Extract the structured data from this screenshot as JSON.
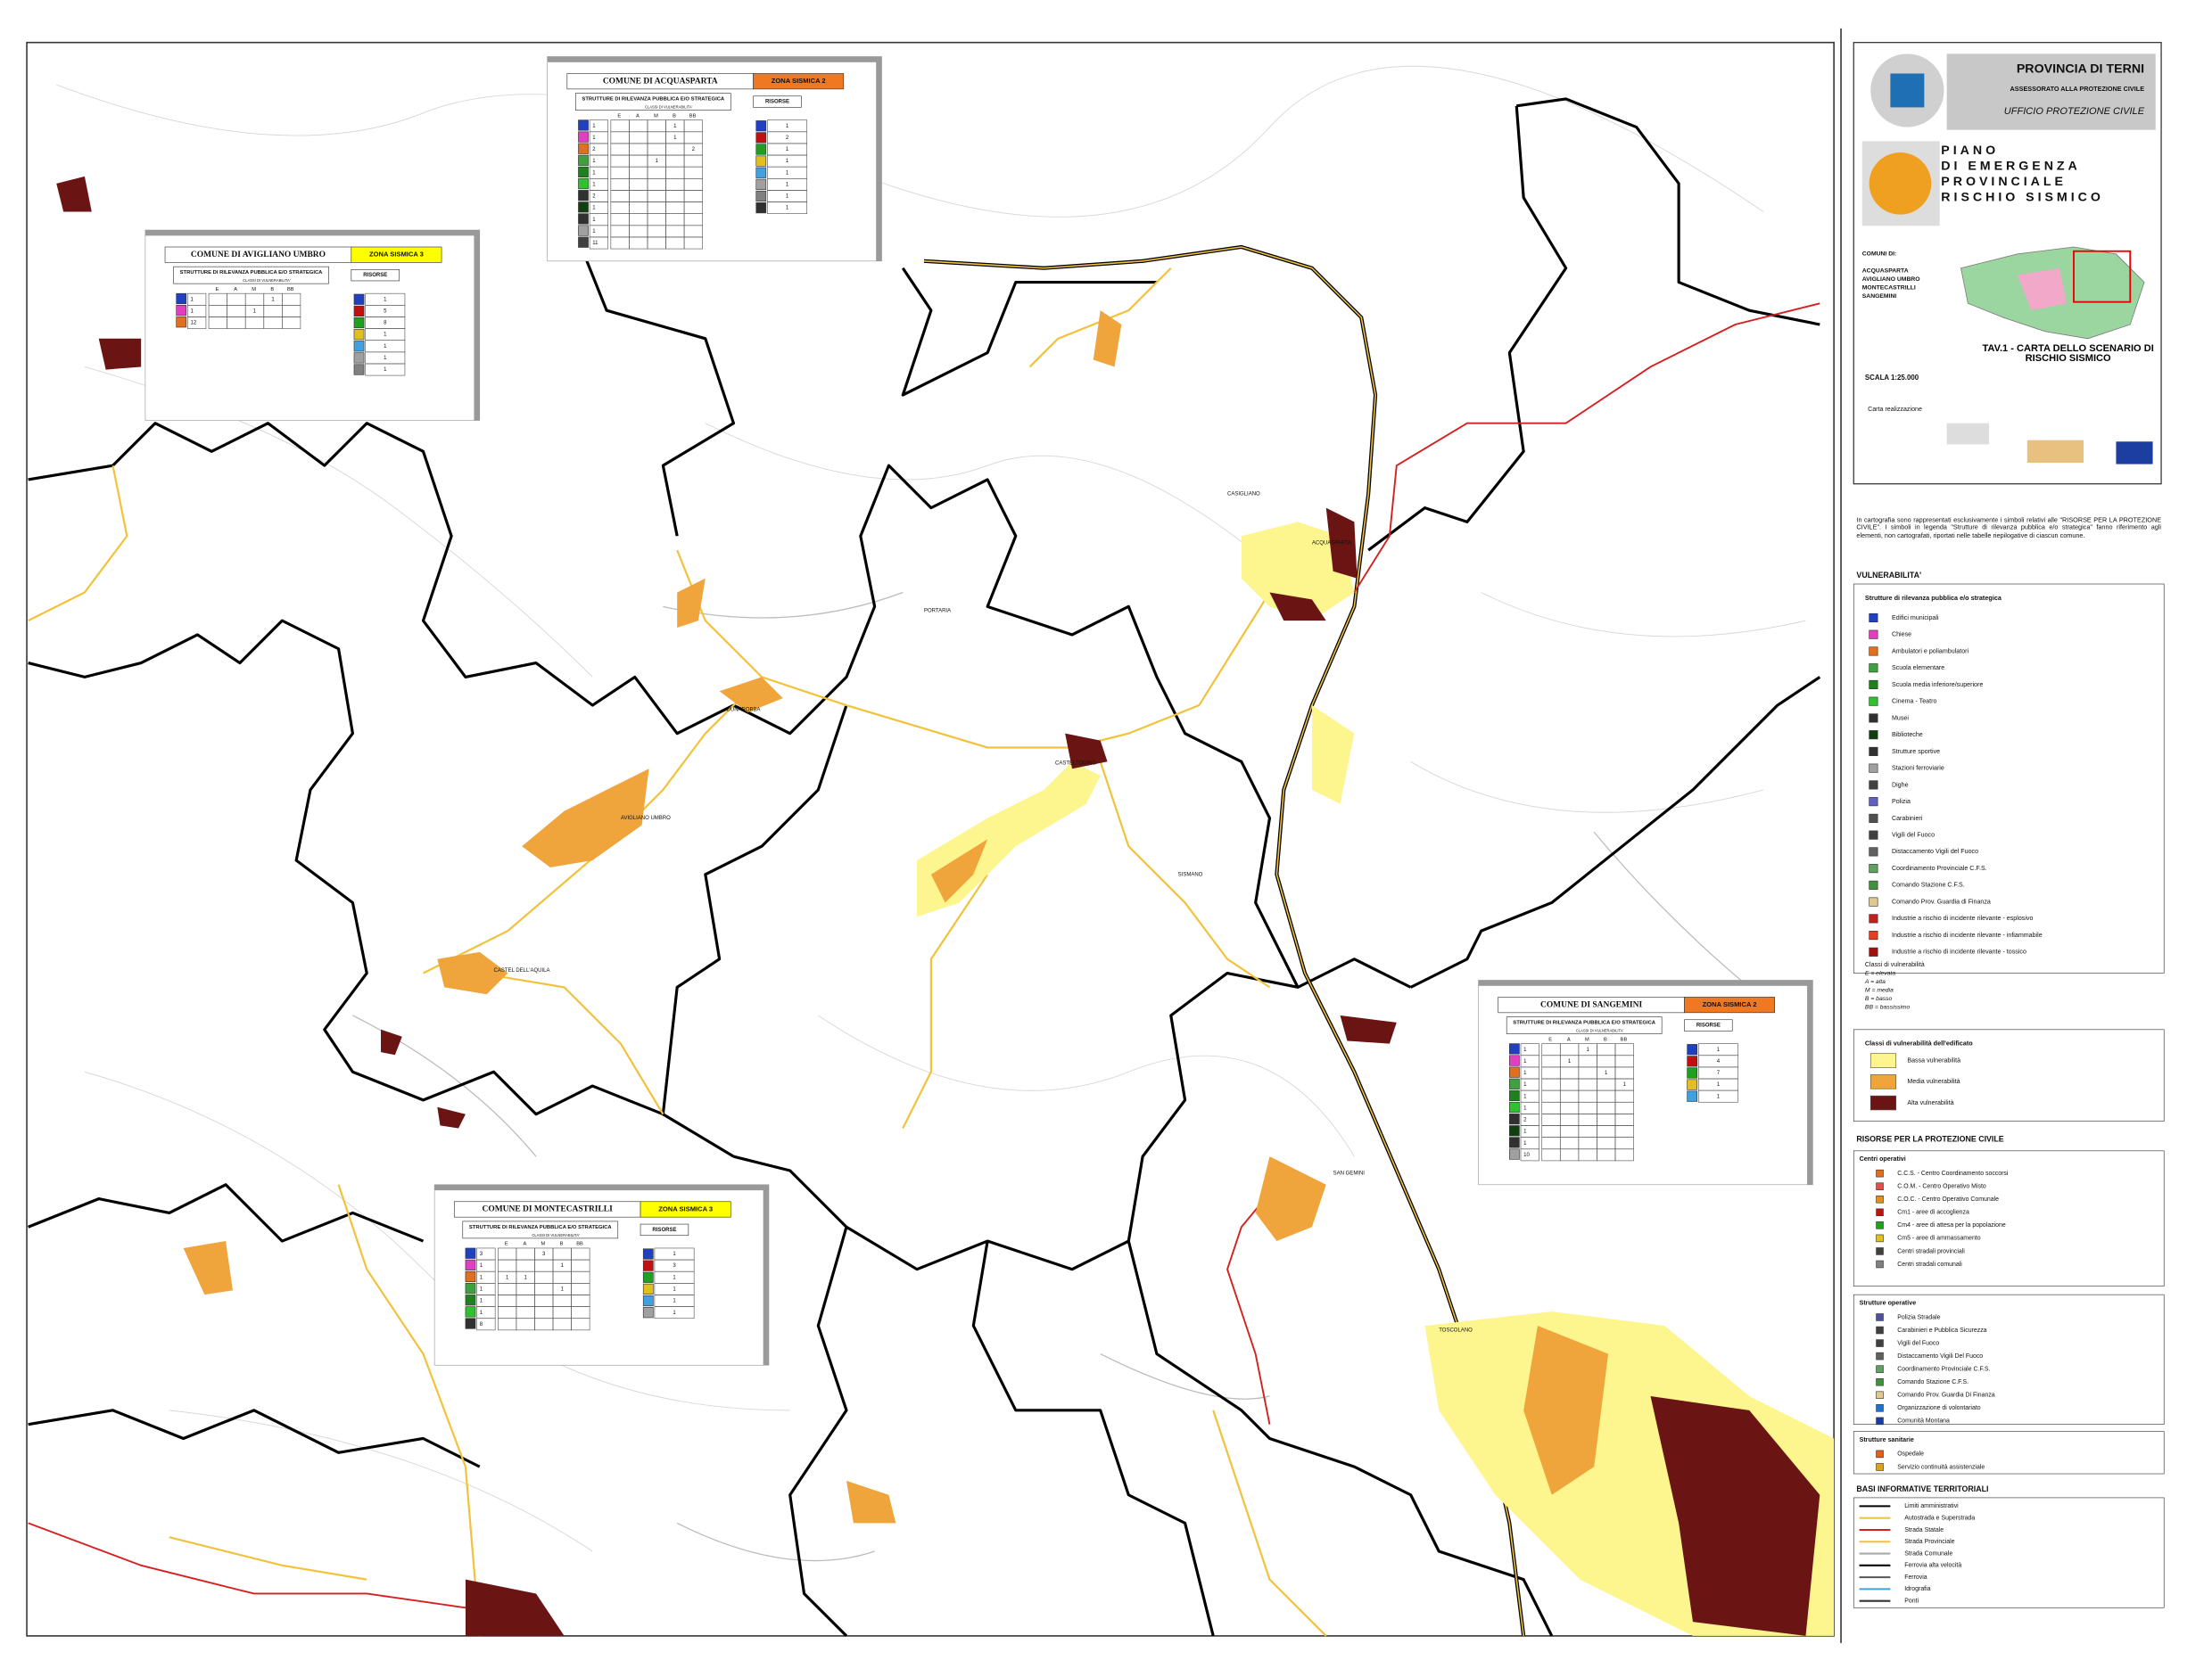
{
  "title_block": {
    "province": "PROVINCIA DI TERNI",
    "assessorato": "ASSESSORATO ALLA PROTEZIONE CIVILE",
    "office": "UFFICIO PROTEZIONE CIVILE",
    "plan": [
      "PIANO",
      "DI EMERGENZA",
      "PROVINCIALE"
    ],
    "risk": "RISCHIO SISMICO",
    "comuni_label": "COMUNI DI:",
    "comuni": [
      "ACQUASPARTA",
      "AVIGLIANO UMBRO",
      "MONTECASTRILLI",
      "SANGEMINI"
    ],
    "table_title": "TAV.1 - CARTA DELLO SCENARIO DI RISCHIO SISMICO",
    "scale": "SCALA 1:25.000",
    "credit": "Carta realizzazione"
  },
  "note": "In cartografia sono rappresentati esclusivamente i simboli relativi alle \"RISORSE PER LA PROTEZIONE CIVILE\". I simboli in legenda \"Strutture di rilevanza pubblica e/o strategica\" fanno riferimento agli elementi, non cartografati, riportati nelle tabelle riepilogative di ciascun comune.",
  "legend": {
    "vulnerability_title": "VULNERABILITA'",
    "structures_title": "Strutture di rilevanza pubblica e/o strategica",
    "structures": [
      "Edifici municipali",
      "Chiese",
      "Ambulatori e poliambulatori",
      "Scuola elementare",
      "Scuola media inferiore/superiore",
      "Cinema - Teatro",
      "Musei",
      "Biblioteche",
      "Strutture sportive",
      "Stazioni ferroviarie",
      "Dighe",
      "Polizia",
      "Carabinieri",
      "Vigili del Fuoco",
      "Distaccamento Vigili del Fuoco",
      "Coordinamento Provinciale C.F.S.",
      "Comando Stazione C.F.S.",
      "Comando Prov. Guardia di Finanza",
      "Industrie a rischio di incidente rilevante - esplosivo",
      "Industrie a rischio di incidente rilevante - infiammabile",
      "Industrie a rischio di incidente rilevante - tossico"
    ],
    "classes_title": "Classi di vulnerabilità",
    "classes": [
      "E = elevata",
      "A = alta",
      "M = media",
      "B = basso",
      "BB = bassissimo"
    ],
    "building_title": "Classi di vulnerabilità dell'edificato",
    "building": [
      {
        "label": "Bassa vulnerabilità",
        "color": "#fdf58e"
      },
      {
        "label": "Media vulnerabilità",
        "color": "#f0a53c"
      },
      {
        "label": "Alta vulnerabilità",
        "color": "#6b1414"
      }
    ],
    "resources_title": "RISORSE PER LA PROTEZIONE CIVILE",
    "centri_title": "Centri operativi",
    "centri": [
      "C.C.S. - Centro Coordinamento soccorsi",
      "C.O.M. - Centro Operativo Misto",
      "C.O.C. - Centro Operativo Comunale",
      "Cm1 - aree di accoglienza",
      "Cm4 - aree di attesa per la popolazione",
      "Cm5 - aree di ammassamento",
      "Centri stradali provinciali",
      "Centri stradali comunali"
    ],
    "operative_title": "Strutture operative",
    "operative": [
      "Polizia Stradale",
      "Carabinieri e Pubblica Sicurezza",
      "Vigili del Fuoco",
      "Distaccamento Vigili Del Fuoco",
      "Coordinamento Provinciale C.F.S.",
      "Comando Stazione C.F.S.",
      "Comando Prov. Guardia Di Finanza",
      "Organizzazione di volontariato",
      "Comunità Montana"
    ],
    "health_title": "Strutture sanitarie",
    "health": [
      "Ospedale",
      "Servizio continuità assistenziale"
    ],
    "base_title": "BASI INFORMATIVE TERRITORIALI",
    "base": [
      "Limiti amministrativi",
      "Autostrada e Superstrada",
      "Strada Statale",
      "Strada Provinciale",
      "Strada Comunale",
      "Ferrovia alta velocità",
      "Ferrovia",
      "Idrografia",
      "Ponti"
    ]
  },
  "class_columns": [
    "E",
    "A",
    "M",
    "B",
    "BB"
  ],
  "structures_header": "STRUTTURE DI RILEVANZA PUBBLICA E/O STRATEGICA",
  "classes_header": "CLASSI DI VULNERABILITA'",
  "resources_header": "RISORSE",
  "comuni": [
    {
      "name": "COMUNE DI AVIGLIANO UMBRO",
      "zone": "ZONA SISMICA 3",
      "zone_color": "#ffff00",
      "rows": [
        [
          1,
          null,
          null,
          null,
          1,
          null
        ],
        [
          1,
          null,
          null,
          1,
          null,
          null
        ],
        [
          12,
          null,
          null,
          null,
          null,
          null
        ]
      ],
      "resources": [
        1,
        5,
        8,
        1,
        1,
        1,
        1
      ]
    },
    {
      "name": "COMUNE DI ACQUASPARTA",
      "zone": "ZONA SISMICA 2",
      "zone_color": "#f07820",
      "rows": [
        [
          1,
          null,
          null,
          null,
          1,
          null
        ],
        [
          1,
          null,
          null,
          null,
          1,
          null
        ],
        [
          2,
          null,
          null,
          null,
          null,
          2
        ],
        [
          1,
          null,
          null,
          1,
          null,
          null
        ],
        [
          1,
          null,
          null,
          null,
          null,
          null
        ],
        [
          1,
          null,
          null,
          null,
          null,
          null
        ],
        [
          2,
          null,
          null,
          null,
          null,
          null
        ],
        [
          1,
          null,
          null,
          null,
          null,
          null
        ],
        [
          1,
          null,
          null,
          null,
          null,
          null
        ],
        [
          1,
          null,
          null,
          null,
          null,
          null
        ],
        [
          11,
          null,
          null,
          null,
          null,
          null
        ]
      ],
      "resources": [
        1,
        2,
        1,
        1,
        1,
        1,
        1,
        1
      ]
    },
    {
      "name": "COMUNE DI SANGEMINI",
      "zone": "ZONA SISMICA 2",
      "zone_color": "#f07820",
      "rows": [
        [
          1,
          null,
          null,
          1,
          null,
          null
        ],
        [
          1,
          null,
          1,
          null,
          null,
          null
        ],
        [
          1,
          null,
          null,
          null,
          1,
          null
        ],
        [
          1,
          null,
          null,
          null,
          null,
          1
        ],
        [
          1,
          null,
          null,
          null,
          null,
          null
        ],
        [
          1,
          null,
          null,
          null,
          null,
          null
        ],
        [
          2,
          null,
          null,
          null,
          null,
          null
        ],
        [
          1,
          null,
          null,
          null,
          null,
          null
        ],
        [
          1,
          null,
          null,
          null,
          null,
          null
        ],
        [
          10,
          null,
          null,
          null,
          null,
          null
        ]
      ],
      "resources": [
        1,
        4,
        7,
        1,
        1
      ]
    },
    {
      "name": "COMUNE DI MONTECASTRILLI",
      "zone": "ZONA SISMICA 3",
      "zone_color": "#ffff00",
      "rows": [
        [
          3,
          null,
          null,
          3,
          null,
          null
        ],
        [
          1,
          null,
          null,
          null,
          1,
          null
        ],
        [
          1,
          1,
          1,
          null,
          null,
          null
        ],
        [
          1,
          null,
          null,
          null,
          1,
          null
        ],
        [
          1,
          null,
          null,
          null,
          null,
          null
        ],
        [
          1,
          null,
          null,
          null,
          null,
          null
        ],
        [
          8,
          null,
          null,
          null,
          null,
          null
        ]
      ],
      "resources": [
        1,
        3,
        1,
        1,
        1,
        1
      ]
    }
  ],
  "places": [
    "ACQUASPARTA",
    "AVIGLIANO UMBRO",
    "CASTEL DELL'AQUILA",
    "DUNAROBBA",
    "CASTELTODINO",
    "SAN GEMINI",
    "PORTARIA",
    "SISMANO",
    "TOSCOLANO",
    "CASIGLIANO"
  ]
}
